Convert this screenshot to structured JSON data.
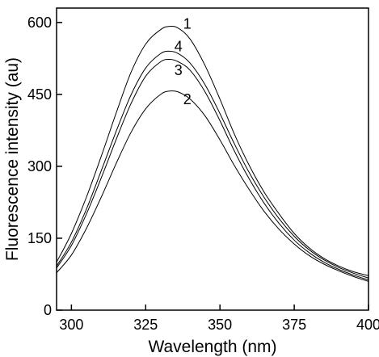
{
  "chart_data": {
    "type": "line",
    "title": "",
    "xlabel": "Wavelength (nm)",
    "ylabel": "Fluorescence intensity (au)",
    "xlim": [
      295,
      400
    ],
    "ylim": [
      0,
      630
    ],
    "xticks": [
      300,
      325,
      350,
      375,
      400
    ],
    "yticks": [
      0,
      150,
      300,
      450,
      600
    ],
    "grid": false,
    "legend": "none",
    "series": [
      {
        "name": "1",
        "label_at": [
          336,
          597
        ],
        "x": [
          295,
          300,
          305,
          310,
          315,
          320,
          325,
          330,
          333,
          336,
          340,
          345,
          350,
          355,
          360,
          365,
          370,
          375,
          380,
          385,
          390,
          395,
          400
        ],
        "y": [
          100,
          160,
          235,
          320,
          410,
          495,
          555,
          585,
          592,
          588,
          565,
          510,
          440,
          365,
          300,
          245,
          200,
          160,
          130,
          108,
          92,
          80,
          72
        ]
      },
      {
        "name": "2",
        "label_at": [
          336,
          440
        ],
        "x": [
          295,
          300,
          305,
          310,
          315,
          320,
          325,
          330,
          333,
          336,
          340,
          345,
          350,
          355,
          360,
          365,
          370,
          375,
          380,
          385,
          390,
          395,
          400
        ],
        "y": [
          78,
          115,
          170,
          235,
          305,
          370,
          420,
          450,
          457,
          455,
          440,
          405,
          355,
          300,
          250,
          205,
          168,
          138,
          114,
          96,
          82,
          70,
          60
        ]
      },
      {
        "name": "3",
        "label_at": [
          333,
          500
        ],
        "x": [
          295,
          300,
          305,
          310,
          315,
          320,
          325,
          330,
          333,
          336,
          340,
          345,
          350,
          355,
          360,
          365,
          370,
          375,
          380,
          385,
          390,
          395,
          400
        ],
        "y": [
          88,
          135,
          200,
          275,
          355,
          430,
          488,
          518,
          523,
          518,
          500,
          455,
          395,
          330,
          272,
          222,
          180,
          146,
          120,
          100,
          85,
          73,
          63
        ]
      },
      {
        "name": "4",
        "label_at": [
          333,
          550
        ],
        "x": [
          295,
          300,
          305,
          310,
          315,
          320,
          325,
          330,
          333,
          336,
          340,
          345,
          350,
          355,
          360,
          365,
          370,
          375,
          380,
          385,
          390,
          395,
          400
        ],
        "y": [
          92,
          142,
          210,
          290,
          372,
          448,
          505,
          535,
          540,
          535,
          515,
          470,
          410,
          345,
          285,
          234,
          190,
          154,
          126,
          105,
          89,
          77,
          67
        ]
      }
    ]
  }
}
